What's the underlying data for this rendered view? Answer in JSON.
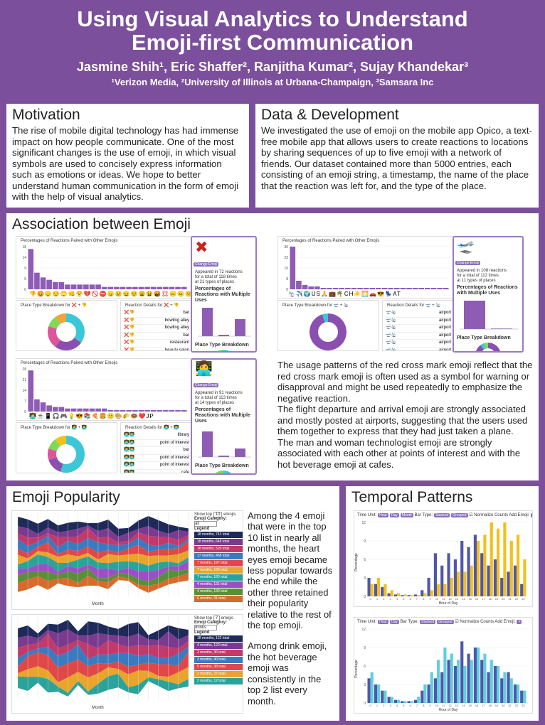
{
  "header": {
    "title_line1": "Using Visual Analytics to Understand",
    "title_line2": "Emoji-first Communication",
    "authors": "Jasmine Shih¹, Eric Shaffer², Ranjitha Kumar², Sujay Khandekar³",
    "affiliations": "¹Verizon Media, ²University of Illinois at Urbana-Champaign, ³Samsara Inc"
  },
  "motivation": {
    "title": "Motivation",
    "text": "The rise of mobile digital technology has had immense impact on how people communicate. One of the most significant changes is the use of emoji, in which visual symbols are used to concisely express information such as emotions or ideas. We hope to better understand human communication in the form of emoji with the help of visual analytics."
  },
  "data_dev": {
    "title": "Data & Development",
    "text": "We investigated the use of emoji on the mobile app Opico, a text-free mobile app that allows users to create reactions to locations by sharing sequences of up to five emoji with a network of friends. Our dataset contained more than 5000 entries, each consisting of an emoji string, a timestamp, the name of the place that the reaction was left for, and the type of the place."
  },
  "association": {
    "title": "Association between Emoji",
    "chart_title": "Percentages of Reactions Paired with Other Emojis",
    "place_breakdown": "Place Type Breakdown for ❌ + 👎",
    "reaction_details": "Reaction Details for ❌ + 👎",
    "place_breakdown_2": "Place Type Breakdown for 🛫 + 🛬",
    "reaction_details_2": "Reaction Details for 🛫 + 🛬",
    "place_breakdown_3": "Place Type Breakdown for 👩‍💻 + 👨‍💻",
    "reaction_details_3": "Reaction Details for 👩‍💻 + 👨‍💻",
    "side_label": "Percentages of Reactions with Multiple Uses",
    "side_place": "Place Type Breakdown",
    "card1_info": [
      "Appeared in 72 reactions",
      "for a total of 118 times",
      "at 21 types of places"
    ],
    "card2_info": [
      "Appeared in 108 reactions",
      "for a total of 112 times",
      "at 11 types of places"
    ],
    "card3_info": [
      "Appeared in 91 reactions",
      "for a total of 113 times",
      "at 14 types of places"
    ],
    "details1": [
      "bar",
      "bowling alley",
      "bowling alley",
      "bar",
      "restaurant",
      "beauty salon"
    ],
    "details2": [
      "airport",
      "airport",
      "airport",
      "airport",
      "airport",
      "airport"
    ],
    "details3": [
      "library",
      "point of interest",
      "bar",
      "point of interest",
      "point of interest",
      "cafe"
    ],
    "text": [
      "The usage patterns of the red cross mark emoji reflect that the red cross mark emoji is often used as a symbol for warning or disapproval and might be used repeatedly to emphasize the negative reaction.",
      "The flight departure and arrival emoji are strongly associated and mostly posted at airports, suggesting that the users used them together to express that they had just taken a plane.",
      "The man and woman technologist emoji are strongly associated with each other at points of interest and with the hot beverage emoji at cafes."
    ]
  },
  "popularity": {
    "title": "Emoji Popularity",
    "show_top": "Show top",
    "emojis": "emojis",
    "category_label": "Emoji Category:",
    "category1": "all",
    "category2": "drinks",
    "legend": "Legend",
    "axis": "Month",
    "legend1": [
      "18 months, 741 total",
      "18 months, 648 total",
      "18 months, 520 total",
      "17 months, 468 total",
      "7 months, 197 total",
      "7 months, 180 total",
      "7 months, 180 total",
      "4 months, 131 total",
      "4 months, 130 total",
      "6 months, 91 total"
    ],
    "legend2": [
      "18 months, 122 total",
      "4 months, 120 total",
      "3 months, 36 total",
      "3 months, 40 total",
      "5 months, 38 total",
      "2 months, 37 total",
      "2 months, 12 total"
    ],
    "text1": "Among the 4 emoji that were in the top 10 list in nearly all months, the heart eyes emoji became less popular towards the end while the other three retained their popularity relative to the rest of the top emoji.",
    "text2": "Among drink emoji, the hot beverage emoji was consistently in the top 2 list every month."
  },
  "temporal": {
    "title": "Temporal Patterns",
    "time_unit": "Time Unit:",
    "bar_type": "Bar Type:",
    "normalize": "Normalize Counts",
    "add_emoji": "Add Emoji:",
    "ylabel": "Percentage",
    "xlabel": "Hour of Day"
  },
  "colors": {
    "purple": "#7c4f9c",
    "bar_purple": "#8e5bb5",
    "indigo": "#5157a8",
    "gold": "#f2c01e",
    "cyan": "#5fd0e0"
  },
  "chart_data": [
    {
      "type": "bar",
      "title": "Percentages of Reactions Paired with Other Emojis",
      "values": [
        17,
        7,
        5,
        4,
        3,
        3,
        2,
        2,
        2,
        2,
        2,
        2,
        1,
        1,
        1,
        1,
        1,
        1,
        1,
        1,
        1,
        1,
        1,
        1,
        1,
        1
      ],
      "ylim": [
        0,
        18
      ]
    },
    {
      "type": "bar",
      "title": "Percentages of Reactions Paired with Other Emojis",
      "values": [
        30,
        6,
        3,
        2,
        2,
        1,
        1,
        1,
        1,
        1,
        1,
        1,
        1,
        1,
        1,
        1,
        1,
        1,
        1,
        1,
        1,
        1,
        1,
        1,
        1,
        1
      ],
      "ylim": [
        0,
        30
      ]
    },
    {
      "type": "bar",
      "title": "Percentages of Reactions Paired with Other Emojis",
      "values": [
        27,
        8,
        6,
        4,
        3,
        3,
        2,
        2,
        2,
        2,
        2,
        2,
        2,
        1,
        1,
        1,
        1,
        1,
        1,
        1,
        1,
        1,
        1,
        1,
        1,
        1
      ],
      "ylim": [
        0,
        28
      ]
    },
    {
      "type": "bar",
      "xlabel": "Hour of Day",
      "ylabel": "Percentage",
      "categories": [
        0,
        1,
        2,
        3,
        4,
        5,
        6,
        7,
        8,
        9,
        10,
        11,
        12,
        13,
        14,
        15,
        16,
        17,
        18,
        19,
        20,
        21,
        22,
        23
      ],
      "series": [
        {
          "values": [
            3,
            2,
            1.5,
            0.5,
            0.3,
            0.2,
            0.2,
            0.3,
            1,
            3,
            7,
            5,
            7,
            6,
            9,
            8,
            10,
            7,
            5,
            6,
            3,
            4,
            5,
            2
          ]
        },
        {
          "values": [
            2,
            3,
            2,
            1,
            0.5,
            0.3,
            0.2,
            0.2,
            0.5,
            1,
            2,
            2,
            3,
            4,
            4,
            5,
            9,
            10,
            12,
            11,
            12,
            9,
            10,
            6
          ]
        }
      ]
    },
    {
      "type": "bar",
      "xlabel": "Hour of Day",
      "ylabel": "Percentage",
      "categories": [
        0,
        1,
        2,
        3,
        4,
        5,
        6,
        7,
        8,
        9,
        10,
        11,
        12,
        13,
        14,
        15,
        16,
        17,
        18,
        19,
        20,
        21,
        22,
        23
      ],
      "series": [
        {
          "values": [
            4,
            3,
            2,
            1,
            0.5,
            0.3,
            0.3,
            0.5,
            2,
            3,
            4,
            5,
            7,
            6,
            10,
            8,
            9,
            7,
            5,
            6,
            4,
            5,
            3,
            2
          ]
        },
        {
          "values": [
            5,
            3,
            2,
            1,
            0.5,
            0.3,
            0.3,
            1,
            3,
            5,
            7,
            9,
            8,
            7,
            6,
            7,
            9,
            8,
            7,
            6,
            5,
            4,
            3,
            2
          ]
        }
      ]
    }
  ]
}
